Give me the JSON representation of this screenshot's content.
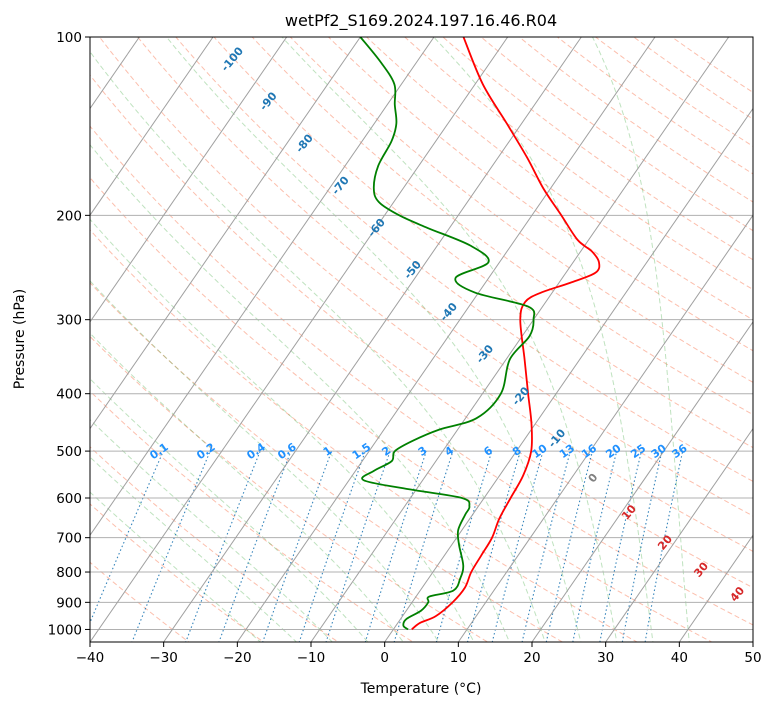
{
  "chart_data": {
    "type": "line",
    "title": "wetPf2_S169.2024.197.16.46.R04",
    "xlabel": "Temperature (°C)",
    "ylabel": "Pressure (hPa)",
    "xlim": [
      -40,
      50
    ],
    "ylim": [
      1050,
      100
    ],
    "y_scale": "log",
    "x_ticks": [
      -40,
      -30,
      -20,
      -10,
      0,
      10,
      20,
      30,
      40,
      50
    ],
    "y_ticks": [
      1000,
      900,
      800,
      700,
      600,
      500,
      400,
      300,
      200,
      100
    ],
    "grid": true,
    "isotherm_labels": [
      -100,
      -90,
      -80,
      -70,
      -60,
      -50,
      -40,
      -30,
      -20,
      -10,
      0,
      10,
      20,
      30,
      40
    ],
    "mixing_ratio_labels": [
      "0.1",
      "0.2",
      "0.4",
      "0.6",
      "1",
      "1.5",
      "2",
      "3",
      "4",
      "6",
      "8",
      "10",
      "13",
      "16",
      "20",
      "25",
      "30",
      "36"
    ],
    "series": [
      {
        "name": "",
        "color": "#ff0000",
        "points": [
          [
            1000,
            2.5
          ],
          [
            975,
            3.0
          ],
          [
            950,
            4.5
          ],
          [
            900,
            5.5
          ],
          [
            850,
            5.8
          ],
          [
            800,
            5.2
          ],
          [
            750,
            5.0
          ],
          [
            700,
            4.8
          ],
          [
            650,
            4.0
          ],
          [
            600,
            3.6
          ],
          [
            550,
            3.2
          ],
          [
            500,
            2.0
          ],
          [
            450,
            -0.5
          ],
          [
            400,
            -3.8
          ],
          [
            350,
            -7.5
          ],
          [
            300,
            -11.8
          ],
          [
            280,
            -12.8
          ],
          [
            270,
            -11.5
          ],
          [
            260,
            -8.5
          ],
          [
            250,
            -6.0
          ],
          [
            240,
            -6.5
          ],
          [
            230,
            -8.5
          ],
          [
            220,
            -11.5
          ],
          [
            200,
            -16.0
          ],
          [
            180,
            -21.0
          ],
          [
            160,
            -26.0
          ],
          [
            140,
            -32.0
          ],
          [
            120,
            -39.0
          ],
          [
            100,
            -46.0
          ]
        ]
      },
      {
        "name": "",
        "color": "#008000",
        "points": [
          [
            1000,
            2.0
          ],
          [
            985,
            1.0
          ],
          [
            960,
            0.8
          ],
          [
            930,
            2.0
          ],
          [
            900,
            2.2
          ],
          [
            880,
            1.8
          ],
          [
            860,
            4.5
          ],
          [
            820,
            4.3
          ],
          [
            780,
            3.5
          ],
          [
            720,
            1.0
          ],
          [
            680,
            -0.5
          ],
          [
            640,
            -1.0
          ],
          [
            620,
            -1.2
          ],
          [
            600,
            -3.0
          ],
          [
            580,
            -11.0
          ],
          [
            560,
            -18.0
          ],
          [
            540,
            -17.5
          ],
          [
            520,
            -16.0
          ],
          [
            500,
            -16.5
          ],
          [
            480,
            -15.0
          ],
          [
            460,
            -12.5
          ],
          [
            440,
            -8.5
          ],
          [
            400,
            -7.5
          ],
          [
            350,
            -9.5
          ],
          [
            320,
            -9.0
          ],
          [
            300,
            -10.0
          ],
          [
            285,
            -12.0
          ],
          [
            270,
            -20.5
          ],
          [
            255,
            -24.5
          ],
          [
            240,
            -21.5
          ],
          [
            225,
            -25.5
          ],
          [
            210,
            -33.0
          ],
          [
            200,
            -38.0
          ],
          [
            190,
            -42.0
          ],
          [
            180,
            -44.0
          ],
          [
            165,
            -45.5
          ],
          [
            150,
            -46.0
          ],
          [
            140,
            -47.0
          ],
          [
            130,
            -49.0
          ],
          [
            120,
            -51.0
          ],
          [
            110,
            -55.0
          ],
          [
            100,
            -60.0
          ]
        ]
      }
    ]
  }
}
